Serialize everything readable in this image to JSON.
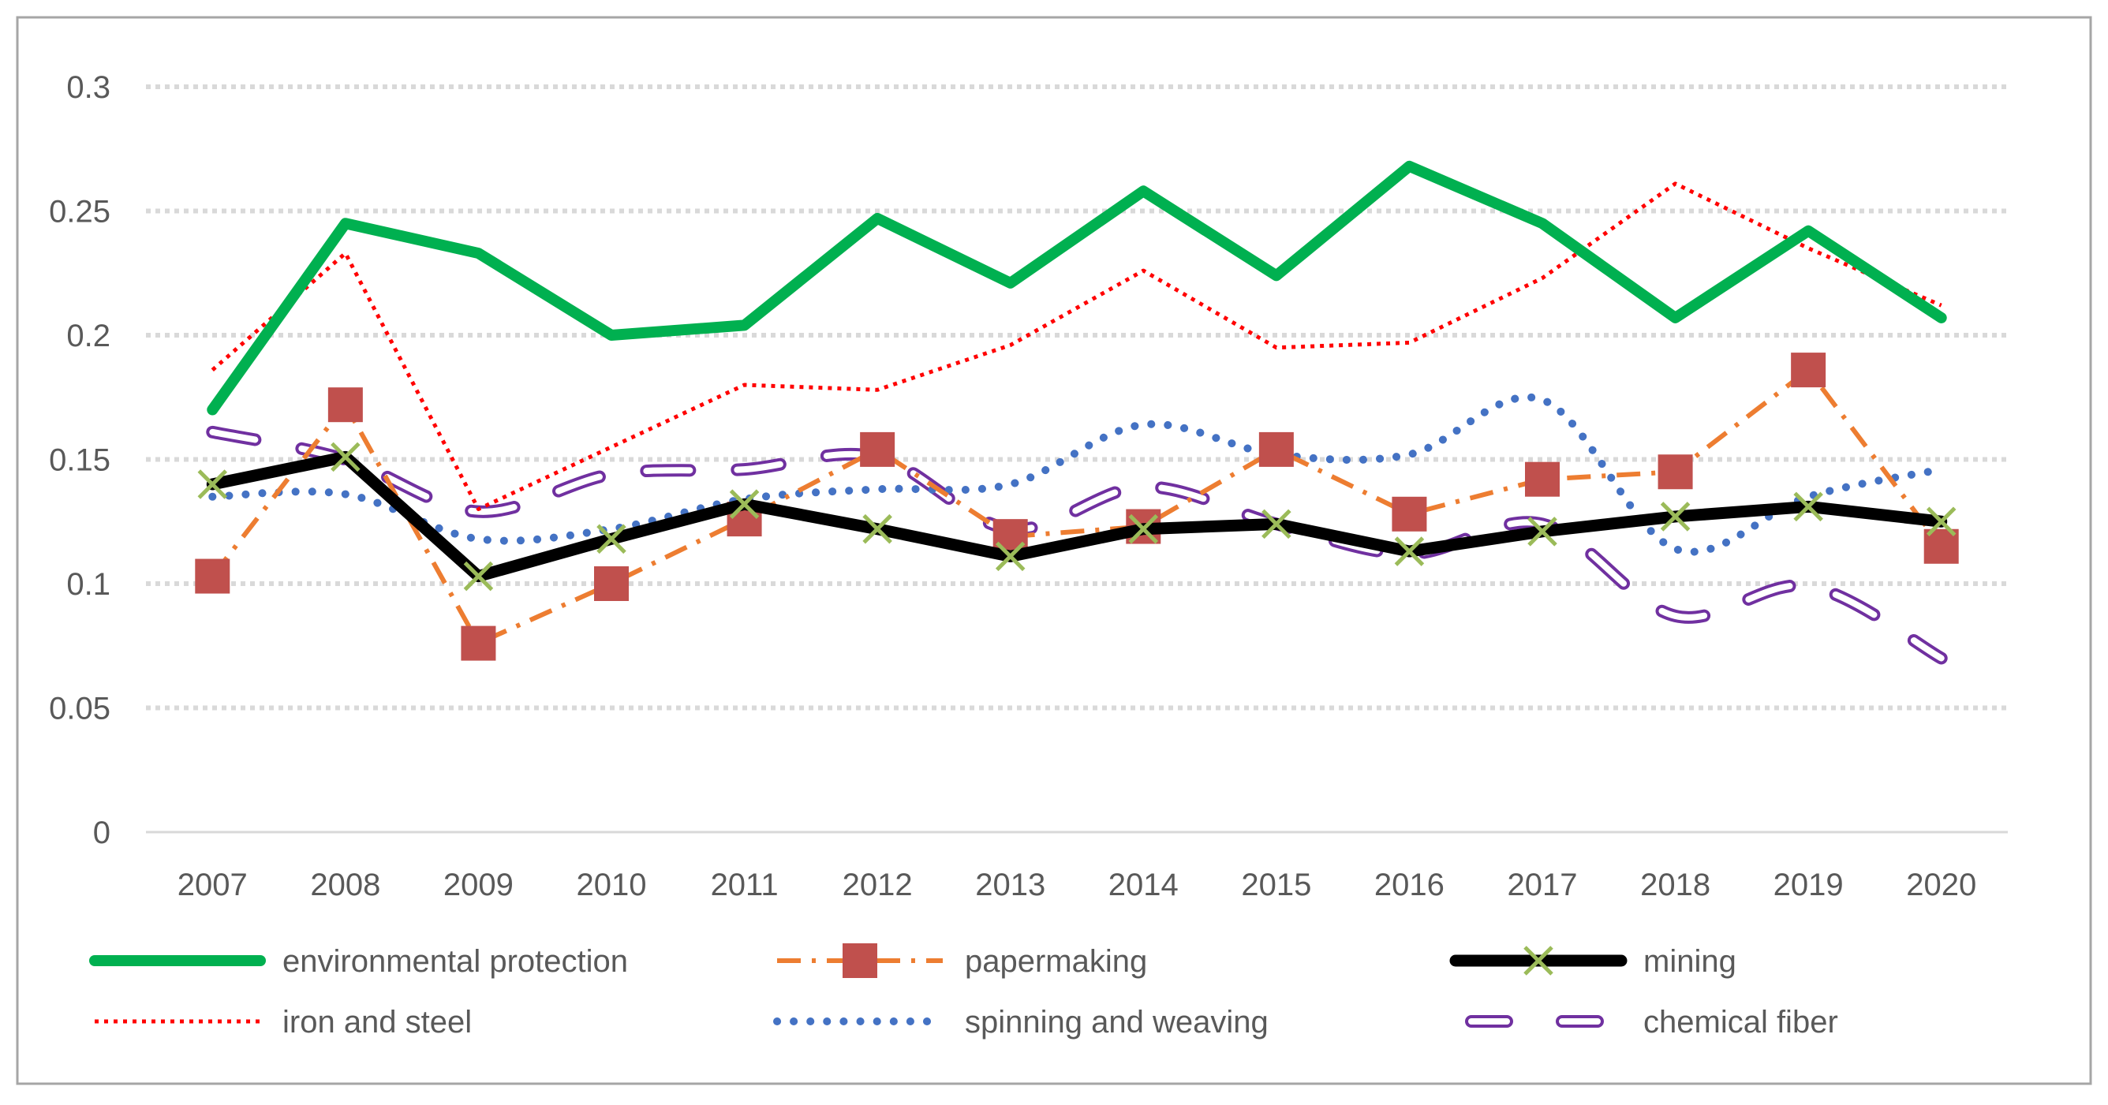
{
  "chart_data": {
    "type": "line",
    "title": "",
    "xlabel": "",
    "ylabel": "",
    "categories": [
      "2007",
      "2008",
      "2009",
      "2010",
      "2011",
      "2012",
      "2013",
      "2014",
      "2015",
      "2016",
      "2017",
      "2018",
      "2019",
      "2020"
    ],
    "ylim": [
      0,
      0.3
    ],
    "yticks": [
      "0",
      "0.05",
      "0.1",
      "0.15",
      "0.2",
      "0.25",
      "0.3"
    ],
    "ytick_values": [
      0,
      0.05,
      0.1,
      0.15,
      0.2,
      0.25,
      0.3
    ],
    "grid": true,
    "legend_position": "bottom",
    "series": [
      {
        "name": "environmental protection",
        "color": "#00b050",
        "style": "solid-thick",
        "values": [
          0.17,
          0.245,
          0.233,
          0.2,
          0.204,
          0.247,
          0.221,
          0.258,
          0.224,
          0.268,
          0.245,
          0.207,
          0.242,
          0.207
        ]
      },
      {
        "name": "papermaking",
        "color": "#ed7d31",
        "marker_color": "#c0504d",
        "style": "dash-dot-square",
        "values": [
          0.103,
          0.172,
          0.076,
          0.1,
          0.126,
          0.154,
          0.119,
          0.123,
          0.154,
          0.128,
          0.142,
          0.145,
          0.186,
          0.115
        ]
      },
      {
        "name": "mining",
        "color": "#000000",
        "marker_color": "#9bbb59",
        "style": "solid-x",
        "values": [
          0.14,
          0.151,
          0.103,
          0.118,
          0.132,
          0.122,
          0.111,
          0.122,
          0.124,
          0.113,
          0.121,
          0.127,
          0.131,
          0.125
        ]
      },
      {
        "name": "iron and steel",
        "color": "#ff0000",
        "style": "dotted",
        "values": [
          0.186,
          0.233,
          0.13,
          0.155,
          0.18,
          0.178,
          0.196,
          0.226,
          0.195,
          0.197,
          0.223,
          0.261,
          0.235,
          0.212
        ]
      },
      {
        "name": "spinning and weaving",
        "color": "#4472c4",
        "style": "round-dot",
        "values": [
          0.135,
          0.136,
          0.118,
          0.122,
          0.134,
          0.138,
          0.14,
          0.164,
          0.152,
          0.152,
          0.174,
          0.114,
          0.135,
          0.146
        ]
      },
      {
        "name": "chemical fiber",
        "color": "#7030a0",
        "style": "long-dash-outline",
        "values": [
          0.161,
          0.15,
          0.129,
          0.144,
          0.146,
          0.151,
          0.122,
          0.139,
          0.124,
          0.112,
          0.124,
          0.087,
          0.099,
          0.07
        ]
      }
    ]
  }
}
